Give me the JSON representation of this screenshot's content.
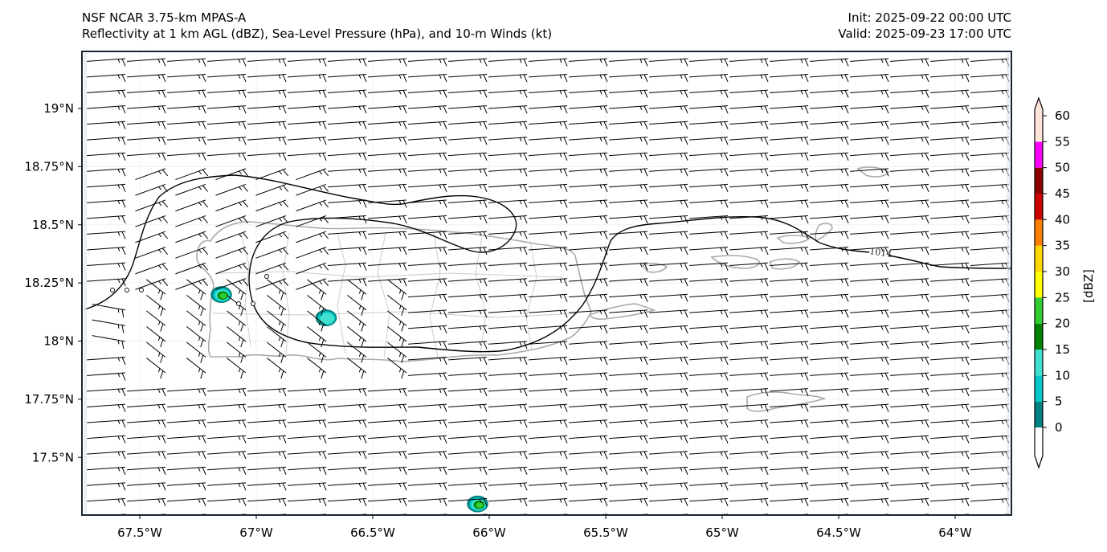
{
  "header": {
    "model": "NSF NCAR 3.75-km MPAS-A",
    "fields": "Reflectivity at 1 km AGL (dBZ), Sea-Level Pressure (hPa), and 10-m Winds (kt)",
    "init": "Init: 2025-09-22 00:00 UTC",
    "valid": "Valid: 2025-09-23 17:00 UTC"
  },
  "map": {
    "region": "Puerto Rico and Virgin Islands",
    "lon_range": [
      -67.75,
      -63.77
    ],
    "lat_range": [
      17.27,
      19.26
    ],
    "lon_ticks": [
      {
        "value": -67.5,
        "label": "67.5°W"
      },
      {
        "value": -67.0,
        "label": "67°W"
      },
      {
        "value": -66.5,
        "label": "66.5°W"
      },
      {
        "value": -66.0,
        "label": "66°W"
      },
      {
        "value": -65.5,
        "label": "65.5°W"
      },
      {
        "value": -65.0,
        "label": "65°W"
      },
      {
        "value": -64.5,
        "label": "64.5°W"
      },
      {
        "value": -64.0,
        "label": "64°W"
      }
    ],
    "lat_ticks": [
      {
        "value": 19.0,
        "label": "19°N"
      },
      {
        "value": 18.75,
        "label": "18.75°N"
      },
      {
        "value": 18.5,
        "label": "18.5°N"
      },
      {
        "value": 18.25,
        "label": "18.25°N"
      },
      {
        "value": 18.0,
        "label": "18°N"
      },
      {
        "value": 17.75,
        "label": "17.75°N"
      },
      {
        "value": 17.5,
        "label": "17.5°N"
      }
    ],
    "isobar_label": "1014",
    "coastline_color": "#aaaaaa",
    "isobar_color": "#000000",
    "frame_color": "#1a2633"
  },
  "colorbar": {
    "label": "[dBZ]",
    "ticks": [
      "0",
      "5",
      "10",
      "15",
      "20",
      "25",
      "30",
      "35",
      "40",
      "45",
      "50",
      "55",
      "60"
    ],
    "bins": [
      {
        "min": 0,
        "max": 5,
        "color": "#008080"
      },
      {
        "min": 5,
        "max": 10,
        "color": "#00c8c8"
      },
      {
        "min": 10,
        "max": 15,
        "color": "#40e0d0"
      },
      {
        "min": 15,
        "max": 20,
        "color": "#008000"
      },
      {
        "min": 20,
        "max": 25,
        "color": "#32cd32"
      },
      {
        "min": 25,
        "max": 30,
        "color": "#ffff00"
      },
      {
        "min": 30,
        "max": 35,
        "color": "#ffd700"
      },
      {
        "min": 35,
        "max": 40,
        "color": "#ff7f00"
      },
      {
        "min": 40,
        "max": 45,
        "color": "#cc0000"
      },
      {
        "min": 45,
        "max": 50,
        "color": "#8b0000"
      },
      {
        "min": 50,
        "max": 55,
        "color": "#ff00ff"
      },
      {
        "min": 55,
        "max": 60,
        "color": "#ffe4dc"
      }
    ],
    "under_color": "#ffffff",
    "over_color": "#ffe4dc"
  },
  "reflectivity_cells": [
    {
      "lon": -67.15,
      "lat": 18.2,
      "max_dbz": 25
    },
    {
      "lon": -66.7,
      "lat": 18.1,
      "max_dbz": 15
    },
    {
      "lon": -66.05,
      "lat": 17.3,
      "max_dbz": 25
    }
  ]
}
